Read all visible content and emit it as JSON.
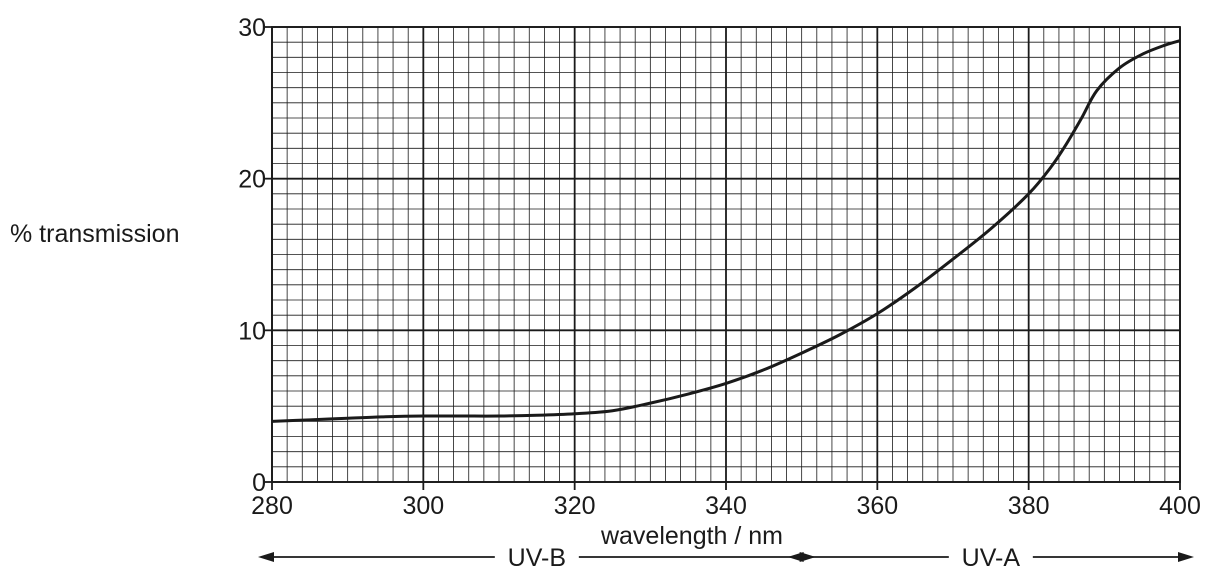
{
  "chart_data": {
    "type": "line",
    "xlabel": "wavelength / nm",
    "ylabel": "% transmission",
    "xlim": [
      280,
      400
    ],
    "ylim": [
      0,
      30
    ],
    "x_ticks": [
      "280",
      "300",
      "320",
      "340",
      "360",
      "380",
      "400"
    ],
    "y_ticks": [
      "0",
      "10",
      "20",
      "30"
    ],
    "grid": true,
    "series": [
      {
        "x": [
          280,
          285,
          290,
          295,
          300,
          305,
          310,
          315,
          320,
          325,
          330,
          335,
          340,
          345,
          350,
          355,
          360,
          365,
          370,
          375,
          380,
          383,
          385,
          387,
          389,
          392,
          395,
          398,
          400
        ],
        "y": [
          4.0,
          4.1,
          4.2,
          4.3,
          4.35,
          4.35,
          4.35,
          4.4,
          4.5,
          4.7,
          5.2,
          5.8,
          6.5,
          7.4,
          8.5,
          9.7,
          11.1,
          12.8,
          14.7,
          16.7,
          19.0,
          20.8,
          22.3,
          24.0,
          25.8,
          27.3,
          28.2,
          28.8,
          29.1
        ]
      }
    ],
    "bands": [
      {
        "label": "UV-B",
        "from": 280,
        "to": 350
      },
      {
        "label": "UV-A",
        "from": 350,
        "to": 400
      }
    ]
  },
  "colors": {
    "ink": "#1a1a1a",
    "grid": "#1a1a1a"
  }
}
